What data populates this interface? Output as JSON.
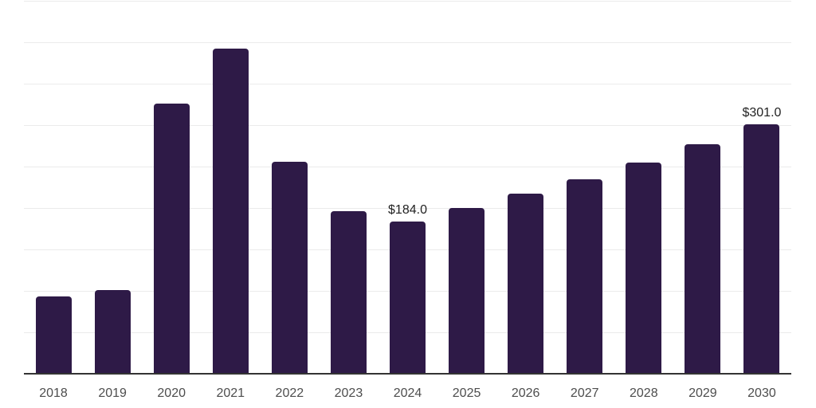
{
  "chart_data": {
    "type": "bar",
    "categories": [
      "2018",
      "2019",
      "2020",
      "2021",
      "2022",
      "2023",
      "2024",
      "2025",
      "2026",
      "2027",
      "2028",
      "2029",
      "2030"
    ],
    "values": [
      93,
      101,
      326,
      392,
      256,
      196,
      184,
      200,
      217,
      235,
      255,
      277,
      301
    ],
    "data_labels": [
      "",
      "",
      "",
      "",
      "",
      "",
      "$184.0",
      "",
      "",
      "",
      "",
      "",
      "$301.0"
    ],
    "xlabel": "",
    "ylabel": "",
    "ylim": [
      0,
      450
    ],
    "grid_step": 50,
    "grid": true,
    "legend_position": "none",
    "colors": {
      "bar": "#2e1a47",
      "axis_line": "#333333",
      "gridline": "#ebebeb",
      "tick_label": "#4d4d4d",
      "data_label": "#222222",
      "background": "#ffffff"
    }
  }
}
